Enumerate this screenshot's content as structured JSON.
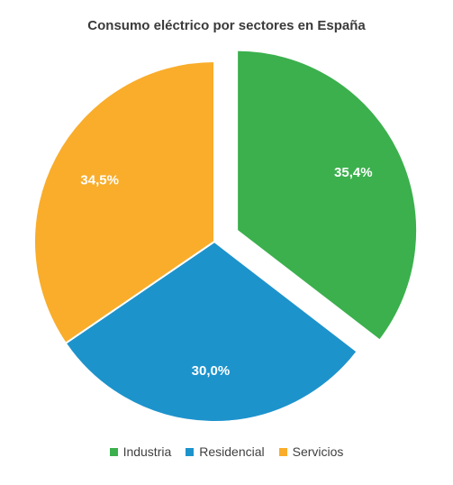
{
  "chart_data": {
    "type": "pie",
    "title": "Consumo eléctrico por sectores en España",
    "categories": [
      "Industria",
      "Residencial",
      "Servicios"
    ],
    "values": [
      35.4,
      30.0,
      34.5
    ],
    "labels": [
      "35,4%",
      "30,0%",
      "34,5%"
    ],
    "colors": [
      "#3bb04d",
      "#1d93cc",
      "#f9ad2b"
    ],
    "exploded": [
      "Industria"
    ],
    "legend": "bottom"
  }
}
